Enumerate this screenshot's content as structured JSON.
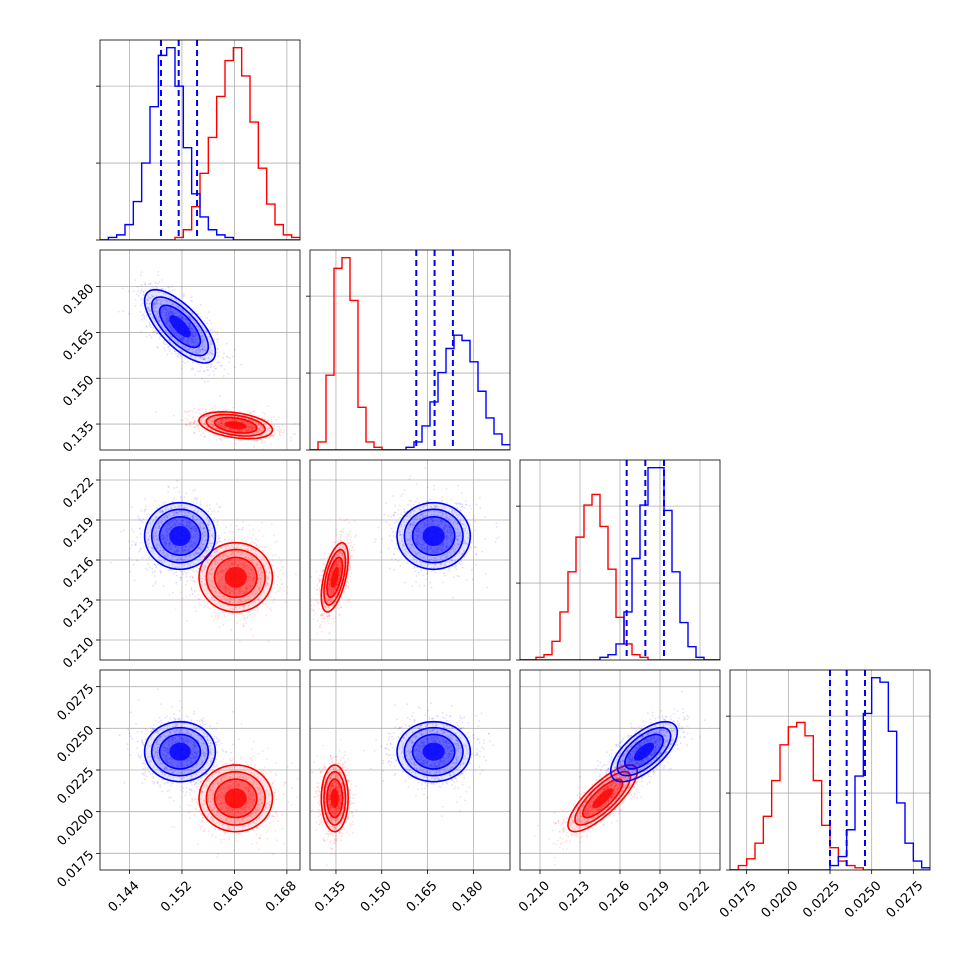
{
  "chart_data": {
    "type": "corner",
    "grid": true,
    "colors": {
      "blue": "#0000ff",
      "red": "#ff0000",
      "grid": "#b0b0b0"
    },
    "parameters": [
      {
        "range": [
          0.1395,
          0.17
        ],
        "ticks": [
          0.144,
          0.152,
          0.16,
          0.168
        ],
        "tick_labels": [
          "0.144",
          "0.152",
          "0.160",
          "0.168"
        ]
      },
      {
        "range": [
          0.1265,
          0.192
        ],
        "ticks": [
          0.135,
          0.15,
          0.165,
          0.18
        ],
        "tick_labels": [
          "0.135",
          "0.150",
          "0.165",
          "0.180"
        ]
      },
      {
        "range": [
          0.2085,
          0.2235
        ],
        "ticks": [
          0.21,
          0.213,
          0.216,
          0.219,
          0.222
        ],
        "tick_labels": [
          "0.210",
          "0.213",
          "0.216",
          "0.219",
          "0.222"
        ]
      },
      {
        "range": [
          0.0165,
          0.0285
        ],
        "ticks": [
          0.0175,
          0.02,
          0.0225,
          0.025,
          0.0275
        ],
        "tick_labels": [
          "0.0175",
          "0.0200",
          "0.0225",
          "0.0250",
          "0.0275"
        ]
      }
    ],
    "series": [
      {
        "color": "blue",
        "means": [
          0.1517,
          0.167,
          0.2178,
          0.0236
        ],
        "sds": [
          0.0027,
          0.006,
          0.00125,
          0.0009
        ],
        "quantiles": [
          [
            0.1488,
            0.1515,
            0.1543
          ],
          [
            0.1613,
            0.1673,
            0.1733
          ],
          [
            0.2165,
            0.2179,
            0.2193
          ],
          [
            0.0225,
            0.0235,
            0.0246
          ]
        ],
        "correlations": [
          [
            1,
            -0.7,
            0,
            0
          ],
          [
            -0.7,
            1,
            0,
            0
          ],
          [
            0,
            0,
            1,
            0.65
          ],
          [
            0,
            0,
            0.65,
            1
          ]
        ]
      },
      {
        "color": "red",
        "means": [
          0.1602,
          0.1346,
          0.2147,
          0.0208
        ],
        "sds": [
          0.0028,
          0.0022,
          0.0013,
          0.001
        ],
        "correlations": [
          [
            1,
            -0.35,
            0,
            0
          ],
          [
            -0.35,
            1,
            0.55,
            0
          ],
          [
            0,
            0.55,
            1,
            0.8
          ],
          [
            0,
            0,
            0.8,
            1
          ]
        ]
      }
    ],
    "histograms": [
      {
        "param": 0,
        "blue": [
          0,
          1,
          2,
          6,
          15,
          30,
          52,
          72,
          75,
          60,
          36,
          18,
          9,
          4,
          2,
          1,
          0,
          0,
          0,
          0,
          0,
          0,
          0,
          0
        ],
        "red": [
          0,
          0,
          0,
          0,
          0,
          0,
          0,
          0,
          0,
          1,
          4,
          13,
          26,
          40,
          56,
          70,
          75,
          64,
          46,
          28,
          14,
          6,
          2,
          1
        ]
      },
      {
        "param": 1,
        "blue": [
          0,
          0,
          0,
          0,
          0,
          0,
          0,
          0,
          0,
          0,
          0,
          0,
          1,
          3,
          9,
          18,
          29,
          38,
          43,
          41,
          33,
          22,
          12,
          6,
          2
        ],
        "red": [
          0,
          3,
          28,
          68,
          72,
          56,
          16,
          3,
          1,
          0,
          0,
          0,
          0,
          0,
          0,
          0,
          0,
          0,
          0,
          0,
          0,
          0,
          0,
          0,
          0
        ]
      },
      {
        "param": 2,
        "blue": [
          0,
          0,
          0,
          0,
          0,
          0,
          0,
          0,
          0,
          0,
          1,
          2,
          6,
          18,
          38,
          58,
          72,
          72,
          56,
          33,
          14,
          5,
          1,
          0,
          0
        ],
        "red": [
          0,
          0,
          1,
          2,
          7,
          18,
          33,
          46,
          58,
          62,
          50,
          34,
          16,
          6,
          2,
          1,
          0,
          0,
          0,
          0,
          0,
          0,
          0,
          0,
          0
        ]
      },
      {
        "param": 3,
        "blue": [
          0,
          0,
          0,
          0,
          0,
          0,
          0,
          0,
          0,
          0,
          0,
          0,
          2,
          6,
          18,
          42,
          70,
          86,
          84,
          62,
          30,
          12,
          4,
          1
        ],
        "red": [
          0,
          2,
          5,
          12,
          24,
          40,
          56,
          64,
          66,
          60,
          40,
          20,
          10,
          4,
          2,
          1,
          0,
          0,
          0,
          0,
          0,
          0,
          0,
          0
        ]
      }
    ]
  }
}
